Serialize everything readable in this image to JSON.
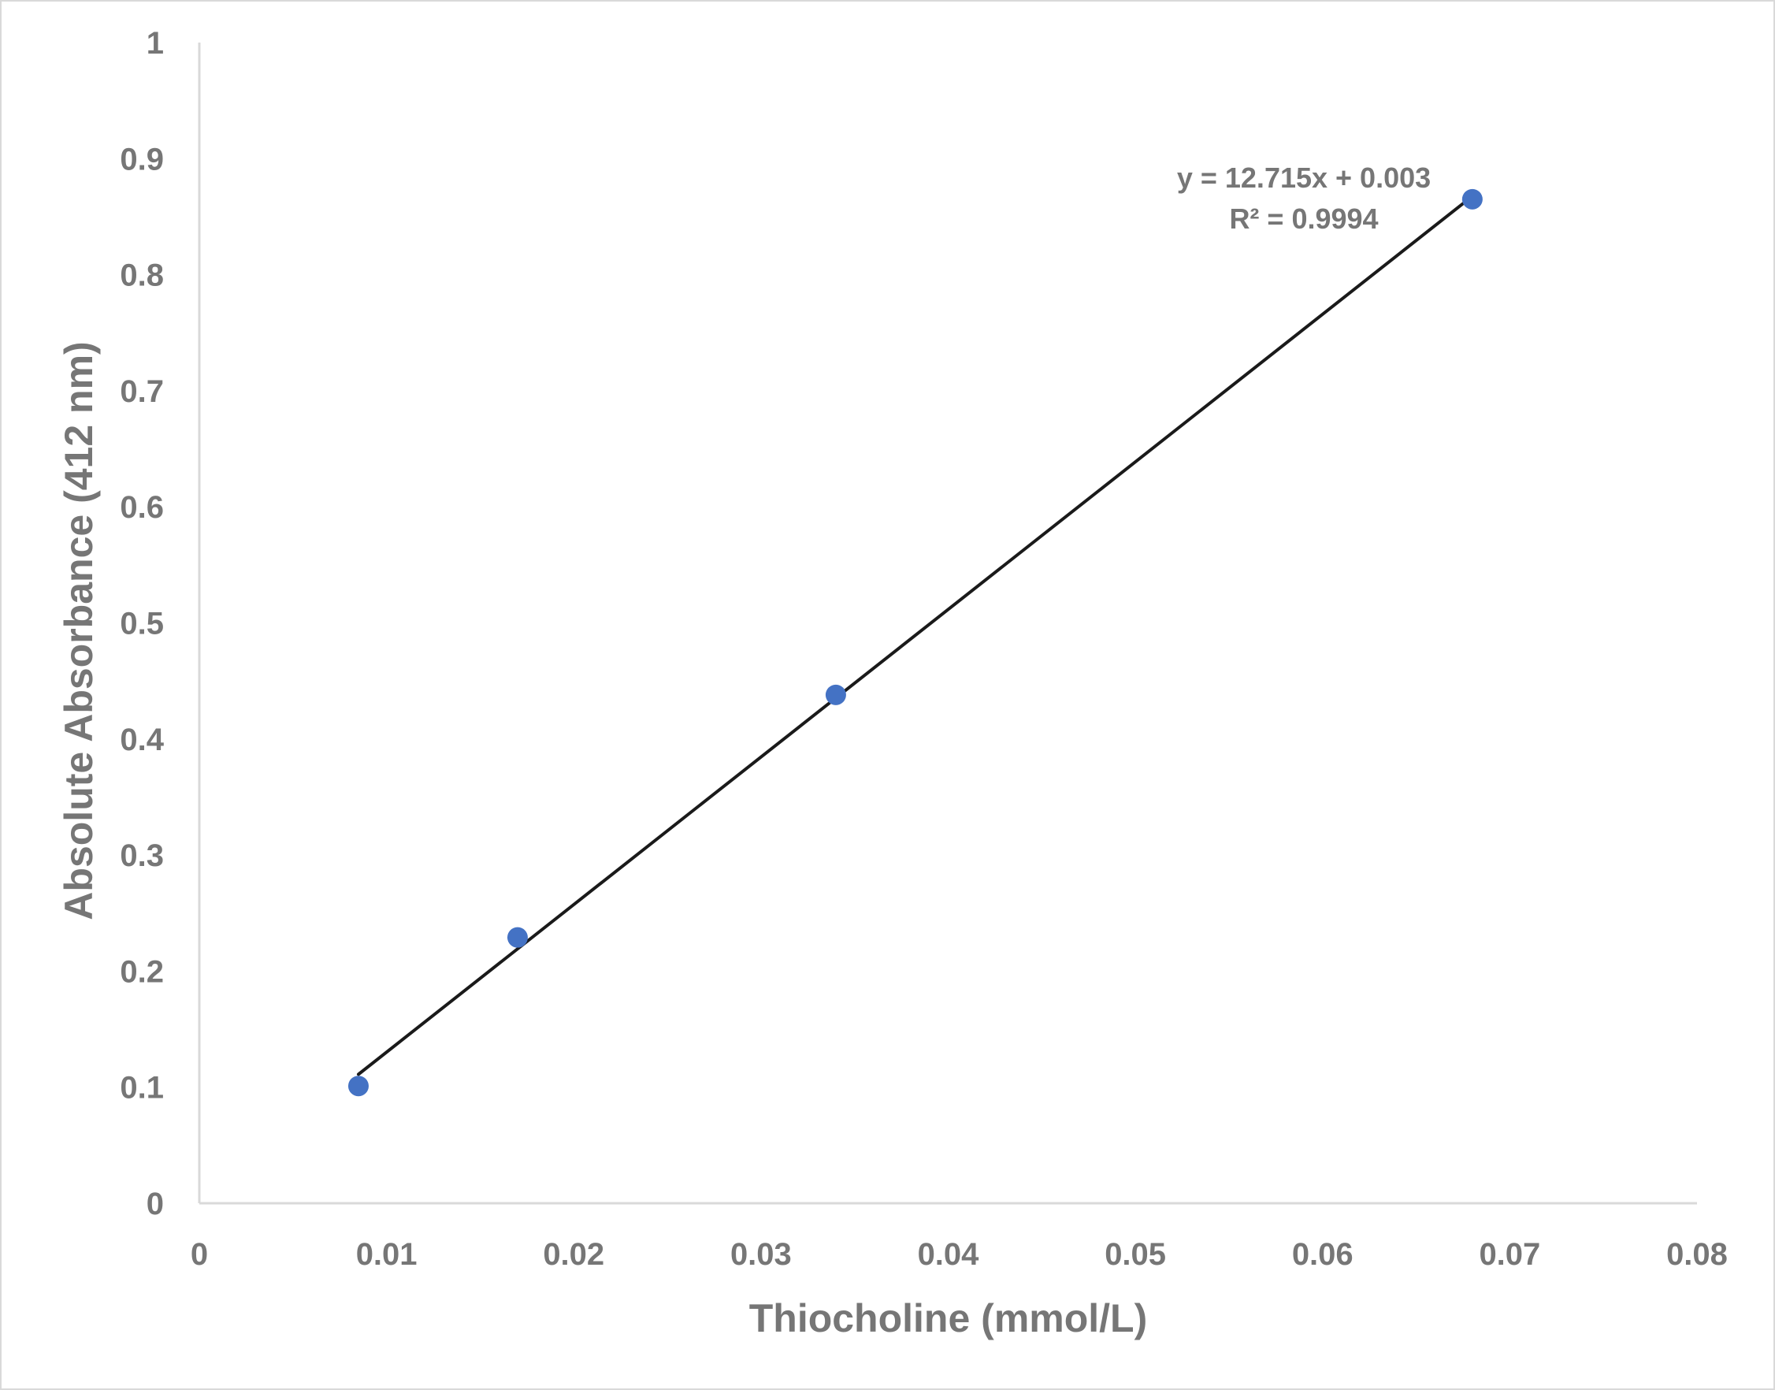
{
  "chart_data": {
    "type": "scatter",
    "xlabel": "Thiocholine (mmol/L)",
    "ylabel": "Absolute Absorbance (412 nm)",
    "xlim": [
      0,
      0.08
    ],
    "ylim": [
      0,
      1
    ],
    "x_ticks": [
      "0",
      "0.01",
      "0.02",
      "0.03",
      "0.04",
      "0.05",
      "0.06",
      "0.07",
      "0.08"
    ],
    "y_ticks": [
      "0",
      "0.1",
      "0.2",
      "0.3",
      "0.4",
      "0.5",
      "0.6",
      "0.7",
      "0.8",
      "0.9",
      "1"
    ],
    "grid": false,
    "legend": "none",
    "series": [
      {
        "x": [
          0.0085,
          0.017,
          0.034,
          0.068
        ],
        "y": [
          0.101,
          0.229,
          0.438,
          0.865
        ],
        "color": "#4472c4"
      }
    ],
    "trendline": {
      "type": "linear",
      "slope": 12.715,
      "intercept": 0.003,
      "x_range": [
        0.0085,
        0.068
      ],
      "color": "#1a1a1a",
      "equation_text": "y = 12.715x + 0.003",
      "r2_text": "R² = 0.9994"
    }
  }
}
